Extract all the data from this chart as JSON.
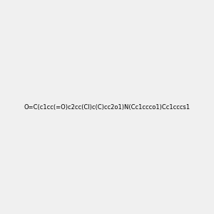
{
  "background_color": "#f0f0f0",
  "bond_color": "#000000",
  "atom_colors": {
    "O": "#ff0000",
    "N": "#0000ff",
    "S": "#cccc00",
    "Cl": "#00cc00",
    "C": "#000000"
  },
  "title": "",
  "smiles": "O=C(c1cc(=O)c2cc(Cl)c(C)cc2o1)N(Cc1ccco1)Cc1cccs1",
  "figsize": [
    3.0,
    3.0
  ],
  "dpi": 100
}
